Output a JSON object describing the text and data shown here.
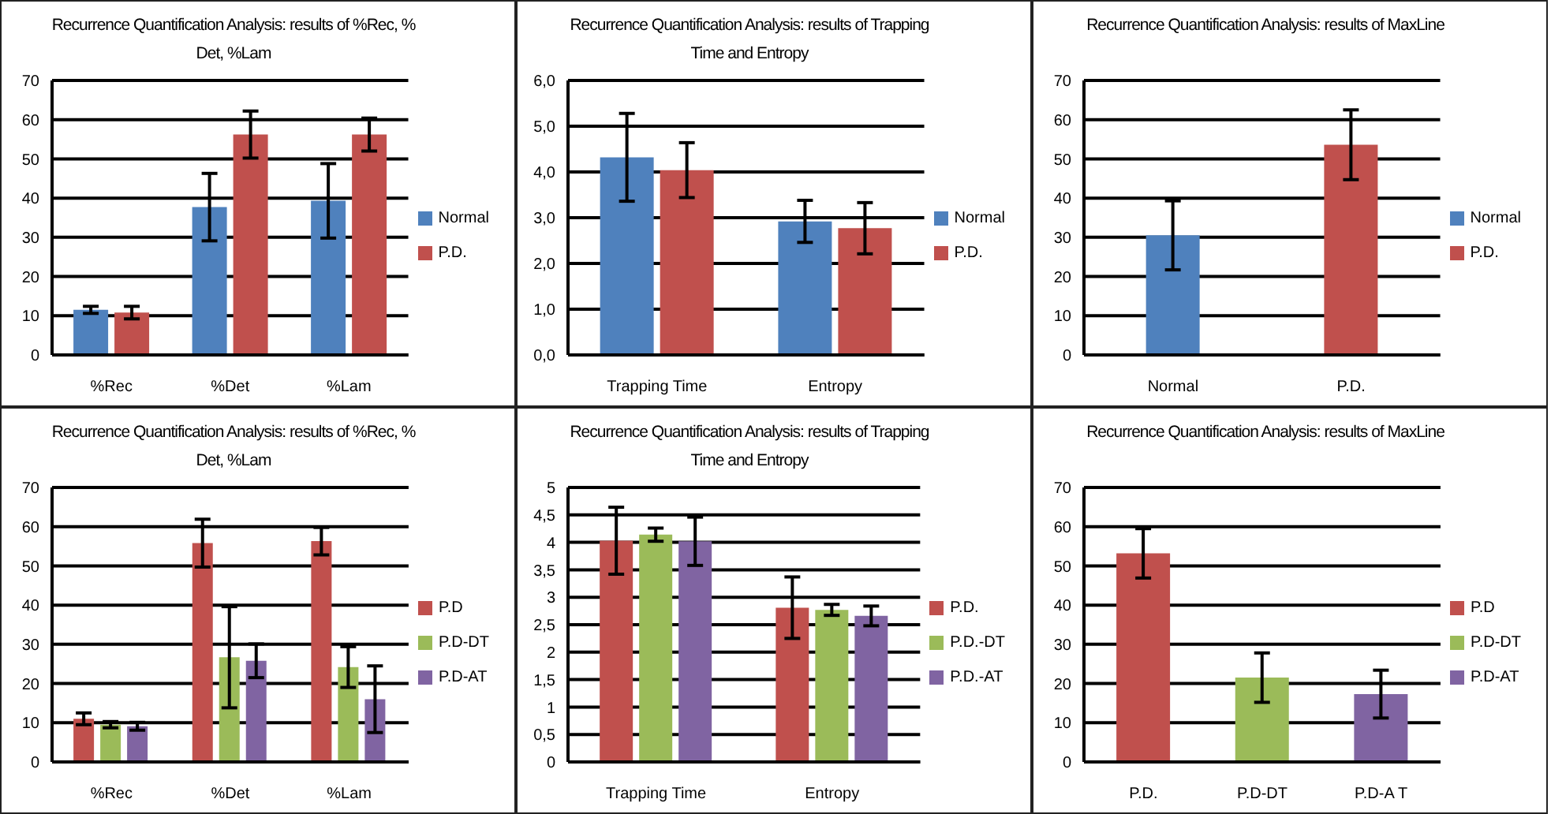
{
  "chart_data": [
    {
      "type": "bar",
      "title": "Recurrence Quantification Analysis: results of %Rec, % Det, %Lam",
      "categories": [
        "%Rec",
        "%Det",
        "%Lam"
      ],
      "series": [
        {
          "name": "Normal",
          "color": "#4f81bd",
          "values": [
            11.5,
            37.7,
            39.3
          ],
          "errors": [
            0.9,
            8.6,
            9.5
          ]
        },
        {
          "name": "P.D.",
          "color": "#c0504d",
          "values": [
            10.8,
            56.2,
            56.2
          ],
          "errors": [
            1.6,
            6,
            4.2
          ]
        }
      ],
      "ylim": [
        0,
        70
      ],
      "yticks": [
        0,
        10,
        20,
        30,
        40,
        50,
        60,
        70
      ],
      "grid": "y",
      "legend": "right"
    },
    {
      "type": "bar",
      "title": "Recurrence Quantification Analysis: results of Trapping Time and Entropy",
      "categories": [
        "Trapping Time",
        "Entropy"
      ],
      "series": [
        {
          "name": "Normal",
          "color": "#4f81bd",
          "values": [
            4.32,
            2.92
          ],
          "errors": [
            0.96,
            0.46
          ]
        },
        {
          "name": "P.D.",
          "color": "#c0504d",
          "values": [
            4.04,
            2.77
          ],
          "errors": [
            0.6,
            0.56
          ]
        }
      ],
      "ylim": [
        0,
        6
      ],
      "yticks": [
        {
          "value": 0,
          "label": "0,0"
        },
        {
          "value": 1,
          "label": "1,0"
        },
        {
          "value": 2,
          "label": "2,0"
        },
        {
          "value": 3,
          "label": "3,0"
        },
        {
          "value": 4,
          "label": "4,0"
        },
        {
          "value": 5,
          "label": "5,0"
        },
        {
          "value": 6,
          "label": "6,0"
        }
      ],
      "grid": "y",
      "legend": "right"
    },
    {
      "type": "bar",
      "title": "Recurrence Quantification Analysis: results of MaxLine",
      "categories": [
        "Normal",
        "P.D."
      ],
      "series": [
        {
          "name": "Normal",
          "color": "#4f81bd",
          "values": [
            30.5,
            null
          ],
          "errors": [
            8.8,
            null
          ]
        },
        {
          "name": "P.D.",
          "color": "#c0504d",
          "values": [
            null,
            53.6
          ],
          "errors": [
            null,
            8.9
          ]
        }
      ],
      "ylim": [
        0,
        70
      ],
      "yticks": [
        0,
        10,
        20,
        30,
        40,
        50,
        60,
        70
      ],
      "grid": "y",
      "legend": "right"
    },
    {
      "type": "bar",
      "title": "Recurrence Quantification Analysis: results of %Rec, % Det, %Lam",
      "categories": [
        "%Rec",
        "%Det",
        "%Lam"
      ],
      "series": [
        {
          "name": "P.D",
          "color": "#c0504d",
          "values": [
            11,
            55.8,
            56.3
          ],
          "errors": [
            1.5,
            6.1,
            3.5
          ]
        },
        {
          "name": "P.D-DT",
          "color": "#9bbb59",
          "values": [
            9.5,
            26.7,
            24.2
          ],
          "errors": [
            0.8,
            12.9,
            5.2
          ]
        },
        {
          "name": "P.D-AT",
          "color": "#8064a2",
          "values": [
            9.1,
            25.8,
            16
          ],
          "errors": [
            1,
            4.3,
            8.5
          ]
        }
      ],
      "ylim": [
        0,
        70
      ],
      "yticks": [
        0,
        10,
        20,
        30,
        40,
        50,
        60,
        70
      ],
      "grid": "y",
      "legend": "right"
    },
    {
      "type": "bar",
      "title": "Recurrence Quantification Analysis: results of Trapping Time and Entropy",
      "categories": [
        "Trapping Time",
        "Entropy"
      ],
      "series": [
        {
          "name": "P.D.",
          "color": "#c0504d",
          "values": [
            4.03,
            2.81
          ],
          "errors": [
            0.61,
            0.56
          ]
        },
        {
          "name": "P.D.-DT",
          "color": "#9bbb59",
          "values": [
            4.14,
            2.77
          ],
          "errors": [
            0.12,
            0.1
          ]
        },
        {
          "name": "P.D.-AT",
          "color": "#8064a2",
          "values": [
            4.02,
            2.66
          ],
          "errors": [
            0.44,
            0.18
          ]
        }
      ],
      "ylim": [
        0,
        5
      ],
      "yticks": [
        0,
        {
          "value": 0.5,
          "label": "0,5"
        },
        1,
        {
          "value": 1.5,
          "label": "1,5"
        },
        2,
        {
          "value": 2.5,
          "label": "2,5"
        },
        3,
        {
          "value": 3.5,
          "label": "3,5"
        },
        4,
        {
          "value": 4.5,
          "label": "4,5"
        },
        5
      ],
      "grid": "y",
      "legend": "right"
    },
    {
      "type": "bar",
      "title": "Recurrence Quantification Analysis: results of MaxLine",
      "categories": [
        "P.D.",
        "P.D-DT",
        "P.D-A T"
      ],
      "series": [
        {
          "name": "P.D",
          "color": "#c0504d",
          "values": [
            53.2,
            null,
            null
          ],
          "errors": [
            6.3,
            null,
            null
          ]
        },
        {
          "name": "P.D-DT",
          "color": "#9bbb59",
          "values": [
            null,
            21.5,
            null
          ],
          "errors": [
            null,
            6.3,
            null
          ]
        },
        {
          "name": "P.D-AT",
          "color": "#8064a2",
          "values": [
            null,
            null,
            17.3
          ],
          "errors": [
            null,
            null,
            6.1
          ]
        }
      ],
      "ylim": [
        0,
        70
      ],
      "yticks": [
        0,
        10,
        20,
        30,
        40,
        50,
        60,
        70
      ],
      "grid": "y",
      "legend": "right"
    }
  ]
}
